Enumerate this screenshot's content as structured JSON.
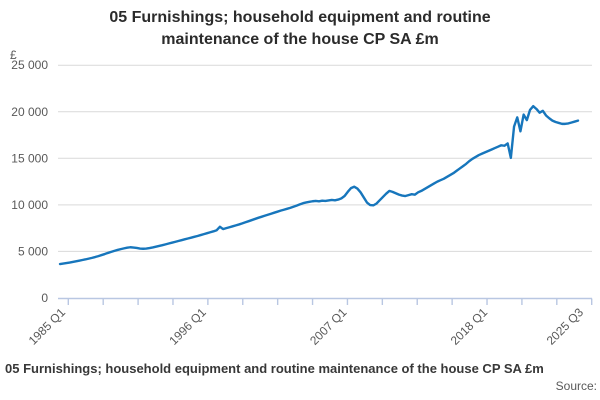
{
  "title": {
    "line1": "05 Furnishings; household equipment and routine",
    "line2": "maintenance of the house CP SA £m"
  },
  "y_axis": {
    "unit_label": "£",
    "ticks": [
      "25 000",
      "20 000",
      "15 000",
      "10 000",
      "5 000",
      "0"
    ],
    "tick_values": [
      25000,
      20000,
      15000,
      10000,
      5000,
      0
    ]
  },
  "x_axis": {
    "labels": [
      {
        "text": "1985 Q1",
        "quarter_index": 0
      },
      {
        "text": "1996 Q1",
        "quarter_index": 44
      },
      {
        "text": "2007 Q1",
        "quarter_index": 88
      },
      {
        "text": "2018 Q1",
        "quarter_index": 132
      },
      {
        "text": "2025 Q3",
        "quarter_index": 162
      }
    ],
    "minor_tick_count": 16
  },
  "footer": {
    "caption": "05 Furnishings; household equipment and routine maintenance of the house CP SA £m",
    "source_label": "Source:"
  },
  "colors": {
    "line": "#1776bc",
    "grid": "#d9d9d9",
    "axis": "#b9c7e2",
    "text_muted": "#595959",
    "title_text": "#2b2b2b"
  },
  "chart_data": {
    "type": "line",
    "title": "05 Furnishings; household equipment and routine maintenance of the house CP SA £m",
    "xlabel": "",
    "ylabel": "£",
    "ylim": [
      0,
      25000
    ],
    "y_tick_labels": [
      "0",
      "5 000",
      "10 000",
      "15 000",
      "20 000",
      "25 000"
    ],
    "x_tick_labels": [
      "1985 Q1",
      "1996 Q1",
      "2007 Q1",
      "2018 Q1",
      "2025 Q3"
    ],
    "frequency": "quarterly",
    "start_period": "1985 Q1",
    "end_period": "2025 Q3",
    "grid": "horizontal-only",
    "legend": "none",
    "series": [
      {
        "name": "05 Furnishings; household equipment and routine maintenance of the house CP SA £m",
        "values": [
          3650,
          3700,
          3750,
          3800,
          3870,
          3940,
          4010,
          4080,
          4150,
          4230,
          4310,
          4400,
          4500,
          4610,
          4720,
          4840,
          4950,
          5060,
          5160,
          5250,
          5330,
          5400,
          5450,
          5420,
          5370,
          5310,
          5290,
          5310,
          5360,
          5430,
          5510,
          5590,
          5670,
          5760,
          5850,
          5940,
          6030,
          6120,
          6210,
          6300,
          6390,
          6480,
          6570,
          6660,
          6760,
          6860,
          6960,
          7060,
          7160,
          7280,
          7650,
          7400,
          7500,
          7600,
          7700,
          7800,
          7900,
          8010,
          8130,
          8250,
          8370,
          8490,
          8610,
          8720,
          8830,
          8940,
          9050,
          9160,
          9270,
          9380,
          9480,
          9580,
          9680,
          9800,
          9920,
          10050,
          10180,
          10260,
          10330,
          10390,
          10430,
          10380,
          10450,
          10420,
          10480,
          10530,
          10490,
          10570,
          10700,
          10950,
          11400,
          11800,
          11950,
          11750,
          11350,
          10800,
          10250,
          9980,
          9950,
          10150,
          10500,
          10850,
          11200,
          11500,
          11400,
          11250,
          11100,
          11000,
          10950,
          11050,
          11150,
          11100,
          11350,
          11500,
          11700,
          11900,
          12100,
          12300,
          12500,
          12650,
          12800,
          13000,
          13200,
          13400,
          13650,
          13900,
          14150,
          14400,
          14700,
          14950,
          15150,
          15350,
          15500,
          15650,
          15800,
          15950,
          16100,
          16250,
          16400,
          16350,
          16600,
          15050,
          18400,
          19400,
          17900,
          19700,
          19100,
          20200,
          20600,
          20300,
          19900,
          20100,
          19600,
          19300,
          19050,
          18900,
          18800,
          18700,
          18700,
          18750,
          18850,
          18950,
          19050
        ]
      }
    ]
  }
}
